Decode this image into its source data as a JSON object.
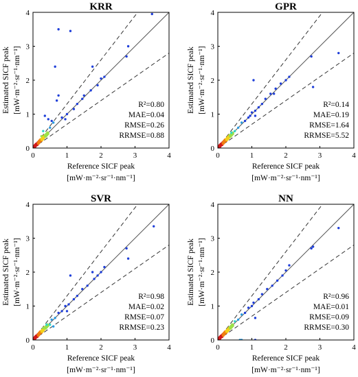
{
  "figure": {
    "x_label_line1": "Reference SICF peak",
    "x_label_line2": "[mW·m⁻²·sr⁻¹·nm⁻¹]",
    "y_label_line1": "Estimated SICF peak",
    "y_label_line2": "[mW·m⁻²·sr⁻¹·nm⁻¹]"
  },
  "colors": {
    "axes": "#000000",
    "identity_line": "#555555",
    "bound_lines": "#333333",
    "points_high": "#1f3fd9"
  },
  "chart_data": [
    {
      "type": "scatter",
      "title": "KRR",
      "xlabel": "Reference SICF peak [mW·m⁻²·sr⁻¹·nm⁻¹]",
      "ylabel": "Estimated SICF peak [mW·m⁻²·sr⁻¹·nm⁻¹]",
      "xlim": [
        0,
        4
      ],
      "ylim": [
        0,
        4
      ],
      "xticks": [
        "0",
        "1",
        "2",
        "3",
        "4"
      ],
      "yticks": [
        "0",
        "1",
        "2",
        "3",
        "4"
      ],
      "reference_lines": [
        "1:1",
        "±30%"
      ],
      "stats": [
        "R²=0.80",
        "MAE=0.04",
        "RMSE=0.26",
        "RRMSE=0.88"
      ],
      "points": [
        [
          3.5,
          3.95
        ],
        [
          2.8,
          3.0
        ],
        [
          2.75,
          2.7
        ],
        [
          1.1,
          3.45
        ],
        [
          0.75,
          3.5
        ],
        [
          0.65,
          2.4
        ],
        [
          1.75,
          2.4
        ],
        [
          0.75,
          1.55
        ],
        [
          0.7,
          1.4
        ],
        [
          2.1,
          2.1
        ],
        [
          2.0,
          2.05
        ],
        [
          1.9,
          1.85
        ],
        [
          1.7,
          1.7
        ],
        [
          0.35,
          0.95
        ],
        [
          0.45,
          0.85
        ],
        [
          0.55,
          0.8
        ],
        [
          0.6,
          0.75
        ],
        [
          0.85,
          0.9
        ],
        [
          0.95,
          0.85
        ],
        [
          1.0,
          1.0
        ],
        [
          1.2,
          1.15
        ],
        [
          1.3,
          1.3
        ],
        [
          1.45,
          1.45
        ],
        [
          1.5,
          1.55
        ],
        [
          0.3,
          0.5
        ],
        [
          0.5,
          0.6
        ],
        [
          0.25,
          0.35
        ]
      ]
    },
    {
      "type": "scatter",
      "title": "GPR",
      "xlabel": "Reference SICF peak [mW·m⁻²·sr⁻¹·nm⁻¹]",
      "ylabel": "Estimated SICF peak [mW·m⁻²·sr⁻¹·nm⁻¹]",
      "xlim": [
        0,
        4
      ],
      "ylim": [
        0,
        4
      ],
      "xticks": [
        "0",
        "1",
        "2",
        "3",
        "4"
      ],
      "yticks": [
        "0",
        "1",
        "2",
        "3",
        "4"
      ],
      "reference_lines": [
        "1:1",
        "±30%"
      ],
      "stats": [
        "R²=0.14",
        "MAE=0.19",
        "RMSE=1.64",
        "RRMSE=5.52"
      ],
      "points": [
        [
          3.55,
          2.8
        ],
        [
          2.75,
          2.7
        ],
        [
          2.8,
          1.8
        ],
        [
          1.05,
          2.0
        ],
        [
          2.1,
          2.1
        ],
        [
          2.0,
          2.0
        ],
        [
          1.85,
          1.9
        ],
        [
          1.7,
          1.75
        ],
        [
          1.55,
          1.6
        ],
        [
          1.4,
          1.45
        ],
        [
          1.3,
          1.3
        ],
        [
          1.2,
          1.2
        ],
        [
          1.1,
          1.1
        ],
        [
          1.0,
          1.05
        ],
        [
          0.9,
          0.9
        ],
        [
          0.8,
          0.8
        ],
        [
          0.7,
          0.75
        ],
        [
          0.6,
          0.6
        ],
        [
          0.5,
          0.5
        ],
        [
          0.4,
          0.45
        ],
        [
          1.65,
          1.6
        ],
        [
          1.1,
          0.95
        ],
        [
          0.95,
          0.95
        ]
      ]
    },
    {
      "type": "scatter",
      "title": "SVR",
      "xlabel": "Reference SICF peak [mW·m⁻²·sr⁻¹·nm⁻¹]",
      "ylabel": "Estimated SICF peak [mW·m⁻²·sr⁻¹·nm⁻¹]",
      "xlim": [
        0,
        4
      ],
      "ylim": [
        0,
        4
      ],
      "xticks": [
        "0",
        "1",
        "2",
        "3",
        "4"
      ],
      "yticks": [
        "0",
        "1",
        "2",
        "3",
        "4"
      ],
      "reference_lines": [
        "1:1",
        "±30%"
      ],
      "stats": [
        "R²=0.98",
        "MAE=0.02",
        "RMSE=0.07",
        "RRMSE=0.23"
      ],
      "points": [
        [
          3.55,
          3.35
        ],
        [
          2.75,
          2.7
        ],
        [
          2.8,
          2.4
        ],
        [
          1.1,
          1.9
        ],
        [
          1.75,
          2.0
        ],
        [
          2.1,
          2.15
        ],
        [
          2.0,
          2.0
        ],
        [
          1.9,
          1.9
        ],
        [
          1.8,
          1.8
        ],
        [
          1.6,
          1.6
        ],
        [
          1.45,
          1.5
        ],
        [
          1.3,
          1.3
        ],
        [
          1.2,
          1.2
        ],
        [
          1.05,
          1.05
        ],
        [
          0.95,
          1.0
        ],
        [
          0.85,
          0.85
        ],
        [
          0.75,
          0.8
        ],
        [
          0.65,
          0.65
        ],
        [
          0.55,
          0.6
        ],
        [
          0.5,
          0.45
        ],
        [
          0.4,
          0.45
        ],
        [
          0.3,
          0.35
        ],
        [
          1.0,
          0.85
        ],
        [
          0.6,
          0.4
        ]
      ]
    },
    {
      "type": "scatter",
      "title": "NN",
      "xlabel": "Reference SICF peak [mW·m⁻²·sr⁻¹·nm⁻¹]",
      "ylabel": "Estimated SICF peak [mW·m⁻²·sr⁻¹·nm⁻¹]",
      "xlim": [
        0,
        4
      ],
      "ylim": [
        0,
        4
      ],
      "xticks": [
        "0",
        "1",
        "2",
        "3",
        "4"
      ],
      "yticks": [
        "0",
        "1",
        "2",
        "3",
        "4"
      ],
      "reference_lines": [
        "1:1",
        "±30%"
      ],
      "stats": [
        "R²=0.96",
        "MAE=0.01",
        "RMSE=0.09",
        "RRMSE=0.30"
      ],
      "points": [
        [
          3.55,
          3.3
        ],
        [
          2.8,
          2.75
        ],
        [
          2.75,
          2.7
        ],
        [
          2.1,
          2.2
        ],
        [
          2.0,
          2.05
        ],
        [
          1.9,
          1.9
        ],
        [
          1.75,
          1.75
        ],
        [
          1.6,
          1.6
        ],
        [
          1.45,
          1.5
        ],
        [
          1.3,
          1.35
        ],
        [
          1.2,
          1.2
        ],
        [
          1.05,
          1.1
        ],
        [
          1.0,
          1.0
        ],
        [
          0.9,
          0.95
        ],
        [
          0.8,
          0.8
        ],
        [
          0.7,
          0.75
        ],
        [
          0.6,
          0.6
        ],
        [
          0.5,
          0.55
        ],
        [
          0.4,
          0.4
        ],
        [
          0.3,
          0.3
        ],
        [
          1.1,
          0.65
        ],
        [
          0.65,
          0.0
        ],
        [
          0.7,
          0.0
        ],
        [
          1.1,
          0.0
        ]
      ]
    }
  ]
}
